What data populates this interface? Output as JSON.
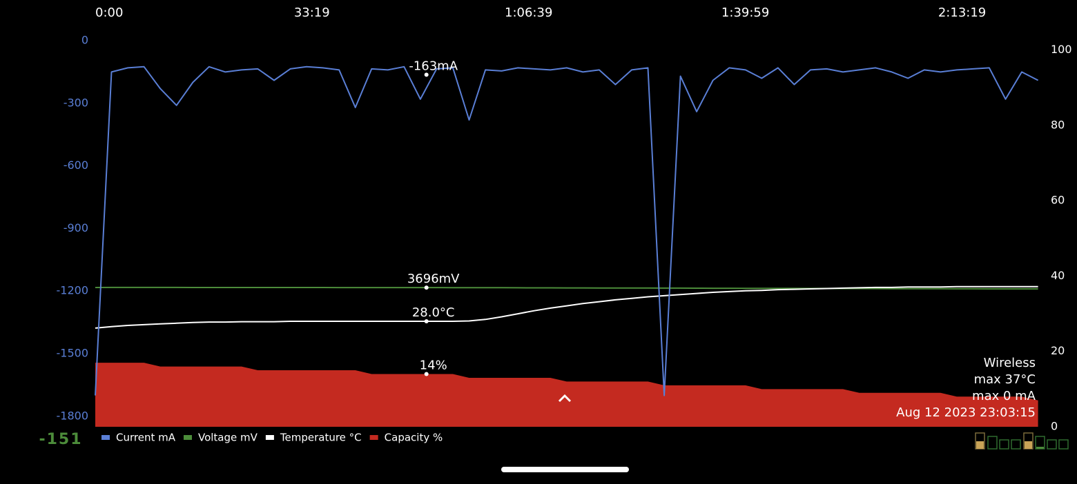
{
  "chart_data": {
    "type": "line",
    "x": [
      0,
      150,
      300,
      450,
      600,
      750,
      900,
      1050,
      1200,
      1350,
      1500,
      1650,
      1800,
      1950,
      2100,
      2250,
      2400,
      2550,
      2700,
      2850,
      3000,
      3150,
      3300,
      3450,
      3600,
      3750,
      3900,
      4050,
      4200,
      4350,
      4500,
      4650,
      4800,
      4950,
      5100,
      5250,
      5400,
      5550,
      5700,
      5850,
      6000,
      6150,
      6300,
      6450,
      6600,
      6750,
      6900,
      7050,
      7200,
      7350,
      7500,
      7650,
      7800,
      7950,
      8100,
      8250,
      8400,
      8550,
      8700
    ],
    "xlim": [
      0,
      8760
    ],
    "xticks": [
      {
        "value": 0,
        "label": "0:00"
      },
      {
        "value": 1999,
        "label": "33:19"
      },
      {
        "value": 3999,
        "label": "1:06:39"
      },
      {
        "value": 5999,
        "label": "1:39:59"
      },
      {
        "value": 7999,
        "label": "2:13:19"
      }
    ],
    "ylim": [
      -1850,
      0
    ],
    "yticks": [
      0,
      -300,
      -600,
      -900,
      -1200,
      -1500,
      -1800
    ],
    "y2lim": [
      0,
      102.5
    ],
    "y2ticks": [
      0,
      20,
      40,
      60,
      80,
      100
    ],
    "y3lim": [
      0,
      10250
    ],
    "series": [
      {
        "name": "Capacity %",
        "color": "#c42a20",
        "axis": "y2",
        "fill": true,
        "values": [
          17,
          17,
          17,
          17,
          16,
          16,
          16,
          16,
          16,
          16,
          15,
          15,
          15,
          15,
          15,
          15,
          15,
          14,
          14,
          14,
          14,
          14,
          14,
          13,
          13,
          13,
          13,
          13,
          13,
          12,
          12,
          12,
          12,
          12,
          12,
          11,
          11,
          11,
          11,
          11,
          11,
          10,
          10,
          10,
          10,
          10,
          10,
          9,
          9,
          9,
          9,
          9,
          9,
          8,
          8,
          8,
          8,
          8,
          7
        ],
        "cursor": {
          "x": 3056,
          "value": 14,
          "label": "14%"
        }
      },
      {
        "name": "Voltage mV",
        "color": "#4c8c3a",
        "axis": "y3",
        "values": [
          3698,
          3700,
          3700,
          3699,
          3699,
          3699,
          3698,
          3698,
          3698,
          3698,
          3697,
          3697,
          3697,
          3697,
          3697,
          3696,
          3696,
          3696,
          3696,
          3696,
          3696,
          3695,
          3694,
          3693,
          3692,
          3691,
          3690,
          3689,
          3688,
          3687,
          3686,
          3685,
          3684,
          3683,
          3682,
          3681,
          3680,
          3679,
          3678,
          3677,
          3676,
          3675,
          3674,
          3673,
          3672,
          3671,
          3670,
          3669,
          3668,
          3667,
          3666,
          3665,
          3664,
          3663,
          3662,
          3661,
          3661,
          3660,
          3660
        ],
        "cursor": {
          "x": 3056,
          "value": 3696,
          "label": "3696mV"
        }
      },
      {
        "name": "Temperature °C",
        "color": "#ffffff",
        "axis": "y2",
        "values": [
          26.2,
          26.6,
          26.9,
          27.1,
          27.3,
          27.5,
          27.7,
          27.8,
          27.8,
          27.9,
          27.9,
          27.9,
          28.0,
          28.0,
          28.0,
          28.0,
          28.0,
          28.0,
          28.0,
          28.0,
          28.0,
          28.0,
          28.0,
          28.1,
          28.5,
          29.2,
          30.0,
          30.8,
          31.5,
          32.1,
          32.7,
          33.2,
          33.7,
          34.1,
          34.5,
          34.8,
          35.1,
          35.4,
          35.7,
          35.9,
          36.1,
          36.2,
          36.4,
          36.5,
          36.6,
          36.7,
          36.8,
          36.9,
          37.0,
          37.0,
          37.1,
          37.1,
          37.1,
          37.2,
          37.2,
          37.2,
          37.2,
          37.2,
          37.2
        ],
        "cursor": {
          "x": 3056,
          "value": 28.0,
          "label": "28.0°C"
        }
      },
      {
        "name": "Current mA",
        "color": "#5a7fd6",
        "values": [
          -1700,
          -150,
          -130,
          -125,
          -230,
          -310,
          -200,
          -125,
          -150,
          -140,
          -135,
          -190,
          -135,
          -125,
          -130,
          -140,
          -320,
          -135,
          -140,
          -125,
          -280,
          -135,
          -130,
          -380,
          -140,
          -145,
          -130,
          -135,
          -140,
          -130,
          -150,
          -140,
          -210,
          -140,
          -130,
          -1700,
          -170,
          -340,
          -190,
          -130,
          -140,
          -180,
          -130,
          -210,
          -140,
          -135,
          -150,
          -140,
          -130,
          -150,
          -180,
          -140,
          -150,
          -140,
          -135,
          -130,
          -280,
          -150,
          -190
        ],
        "cursor": {
          "x": 3056,
          "value": -163,
          "label": "-163mA"
        }
      }
    ],
    "legend_order": [
      3,
      1,
      2,
      0
    ],
    "info": [
      "Wireless",
      "max 37°C",
      "max 0 mA",
      "Aug 12 2023 23:03:15"
    ],
    "current_reading": "-151"
  }
}
